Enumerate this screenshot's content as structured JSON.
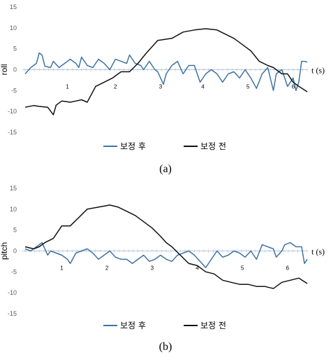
{
  "colors": {
    "after": "#3f73a3",
    "before": "#111111",
    "zero_axis": "#b9c9dc"
  },
  "chart_data": [
    {
      "type": "line",
      "ylabel": "roll",
      "x_label": "t (s)",
      "ylim": [
        -15,
        15
      ],
      "yticks": [
        "15",
        "10",
        "5",
        "0",
        "-5",
        "-10",
        "-15"
      ],
      "segment_labels": [
        "1",
        "2",
        "3",
        "4",
        "5",
        "6"
      ],
      "segment_x": [
        0.15,
        0.32,
        0.48,
        0.63,
        0.79,
        0.95
      ],
      "legend": [
        "보정 후",
        "보정 전"
      ],
      "caption": "(a)",
      "x_range": [
        0,
        1
      ],
      "series": [
        {
          "name": "보정 후",
          "key": "after",
          "points": [
            [
              0,
              -1
            ],
            [
              0.02,
              0.5
            ],
            [
              0.04,
              1.5
            ],
            [
              0.05,
              4
            ],
            [
              0.06,
              3.5
            ],
            [
              0.07,
              0.8
            ],
            [
              0.09,
              0.5
            ],
            [
              0.1,
              2
            ],
            [
              0.12,
              0.5
            ],
            [
              0.14,
              1.5
            ],
            [
              0.16,
              2.5
            ],
            [
              0.18,
              1.5
            ],
            [
              0.19,
              0.5
            ],
            [
              0.2,
              3
            ],
            [
              0.22,
              1
            ],
            [
              0.24,
              0.5
            ],
            [
              0.26,
              2.5
            ],
            [
              0.28,
              1.5
            ],
            [
              0.3,
              0
            ],
            [
              0.32,
              2.5
            ],
            [
              0.34,
              2
            ],
            [
              0.36,
              1.5
            ],
            [
              0.37,
              3.5
            ],
            [
              0.39,
              1.5
            ],
            [
              0.41,
              1
            ],
            [
              0.42,
              0
            ],
            [
              0.44,
              2
            ],
            [
              0.46,
              0
            ],
            [
              0.47,
              -0.5
            ],
            [
              0.49,
              -3.5
            ],
            [
              0.5,
              -1
            ],
            [
              0.52,
              1
            ],
            [
              0.54,
              2
            ],
            [
              0.56,
              -1
            ],
            [
              0.58,
              1
            ],
            [
              0.6,
              1
            ],
            [
              0.62,
              -3
            ],
            [
              0.64,
              -1
            ],
            [
              0.66,
              0
            ],
            [
              0.68,
              -1
            ],
            [
              0.7,
              -3
            ],
            [
              0.72,
              -1
            ],
            [
              0.74,
              -0.5
            ],
            [
              0.76,
              -2
            ],
            [
              0.78,
              0
            ],
            [
              0.8,
              -2
            ],
            [
              0.82,
              -4.5
            ],
            [
              0.84,
              -1
            ],
            [
              0.86,
              0.5
            ],
            [
              0.88,
              -5
            ],
            [
              0.89,
              -1
            ],
            [
              0.91,
              0
            ],
            [
              0.93,
              -4
            ],
            [
              0.95,
              -2
            ],
            [
              0.96,
              -5
            ],
            [
              0.97,
              -3
            ],
            [
              0.98,
              2
            ],
            [
              0.99,
              2
            ],
            [
              1.0,
              1.8
            ]
          ]
        },
        {
          "name": "보정 전",
          "key": "before",
          "points": [
            [
              0,
              -9
            ],
            [
              0.03,
              -8.6
            ],
            [
              0.05,
              -8.8
            ],
            [
              0.08,
              -9
            ],
            [
              0.1,
              -10.8
            ],
            [
              0.11,
              -8.5
            ],
            [
              0.13,
              -7.5
            ],
            [
              0.16,
              -7.8
            ],
            [
              0.18,
              -7.5
            ],
            [
              0.2,
              -7.2
            ],
            [
              0.22,
              -7.8
            ],
            [
              0.25,
              -4
            ],
            [
              0.28,
              -3
            ],
            [
              0.31,
              -2
            ],
            [
              0.34,
              -0.5
            ],
            [
              0.37,
              -0.5
            ],
            [
              0.4,
              1.5
            ],
            [
              0.43,
              4
            ],
            [
              0.47,
              7
            ],
            [
              0.52,
              7.5
            ],
            [
              0.56,
              9
            ],
            [
              0.6,
              9.5
            ],
            [
              0.64,
              9.8
            ],
            [
              0.68,
              9.5
            ],
            [
              0.71,
              8.5
            ],
            [
              0.74,
              7.5
            ],
            [
              0.77,
              6
            ],
            [
              0.8,
              4.5
            ],
            [
              0.83,
              2
            ],
            [
              0.86,
              1
            ],
            [
              0.88,
              0.5
            ],
            [
              0.91,
              -1
            ],
            [
              0.93,
              -1
            ],
            [
              0.95,
              -3
            ],
            [
              0.97,
              -4
            ],
            [
              1.0,
              -5.3
            ]
          ]
        }
      ]
    },
    {
      "type": "line",
      "ylabel": "pitch",
      "x_label": "t (s)",
      "ylim": [
        -15,
        15
      ],
      "yticks": [
        "15",
        "10",
        "5",
        "0",
        "-5",
        "-10",
        "-15"
      ],
      "segment_labels": [
        "1",
        "2",
        "3",
        "4",
        "5",
        "6"
      ],
      "segment_x": [
        0.13,
        0.29,
        0.45,
        0.61,
        0.77,
        0.93
      ],
      "legend": [
        "보정 후",
        "보정 전"
      ],
      "caption": "(b)",
      "x_range": [
        0,
        1
      ],
      "series": [
        {
          "name": "보정 후",
          "key": "after",
          "points": [
            [
              0,
              0.5
            ],
            [
              0.02,
              0
            ],
            [
              0.04,
              1
            ],
            [
              0.06,
              2
            ],
            [
              0.08,
              -1
            ],
            [
              0.09,
              0
            ],
            [
              0.11,
              -0.5
            ],
            [
              0.13,
              -1
            ],
            [
              0.15,
              -2
            ],
            [
              0.16,
              -3
            ],
            [
              0.18,
              -0.5
            ],
            [
              0.2,
              0
            ],
            [
              0.22,
              0.5
            ],
            [
              0.24,
              -0.5
            ],
            [
              0.26,
              -2
            ],
            [
              0.28,
              -1
            ],
            [
              0.3,
              0
            ],
            [
              0.32,
              -1.5
            ],
            [
              0.34,
              -2
            ],
            [
              0.36,
              -2
            ],
            [
              0.38,
              -3
            ],
            [
              0.4,
              -2
            ],
            [
              0.42,
              -1
            ],
            [
              0.44,
              -2.5
            ],
            [
              0.46,
              -2
            ],
            [
              0.48,
              -1
            ],
            [
              0.5,
              -2
            ],
            [
              0.52,
              -2.5
            ],
            [
              0.54,
              -1
            ],
            [
              0.56,
              -0.5
            ],
            [
              0.58,
              0
            ],
            [
              0.6,
              -1
            ],
            [
              0.62,
              -2.5
            ],
            [
              0.64,
              -4
            ],
            [
              0.66,
              -2
            ],
            [
              0.68,
              0
            ],
            [
              0.7,
              -1.5
            ],
            [
              0.72,
              -1
            ],
            [
              0.74,
              0
            ],
            [
              0.76,
              -0.5
            ],
            [
              0.78,
              -1.5
            ],
            [
              0.8,
              0
            ],
            [
              0.82,
              -2
            ],
            [
              0.84,
              1.5
            ],
            [
              0.86,
              1
            ],
            [
              0.88,
              0.5
            ],
            [
              0.89,
              -1.5
            ],
            [
              0.91,
              0
            ],
            [
              0.92,
              1.5
            ],
            [
              0.94,
              2
            ],
            [
              0.96,
              1
            ],
            [
              0.98,
              1
            ],
            [
              0.99,
              -3
            ],
            [
              1.0,
              -2
            ]
          ]
        },
        {
          "name": "보정 전",
          "key": "before",
          "points": [
            [
              0,
              1
            ],
            [
              0.03,
              0.5
            ],
            [
              0.05,
              1
            ],
            [
              0.07,
              2
            ],
            [
              0.1,
              3
            ],
            [
              0.13,
              6
            ],
            [
              0.16,
              6
            ],
            [
              0.19,
              8
            ],
            [
              0.22,
              10
            ],
            [
              0.26,
              10.5
            ],
            [
              0.3,
              11
            ],
            [
              0.33,
              10.5
            ],
            [
              0.36,
              9.5
            ],
            [
              0.39,
              8.5
            ],
            [
              0.42,
              7
            ],
            [
              0.45,
              5.5
            ],
            [
              0.48,
              3.5
            ],
            [
              0.5,
              2
            ],
            [
              0.52,
              1
            ],
            [
              0.55,
              -1
            ],
            [
              0.58,
              -3
            ],
            [
              0.61,
              -3.5
            ],
            [
              0.64,
              -5
            ],
            [
              0.67,
              -5.5
            ],
            [
              0.7,
              -7
            ],
            [
              0.73,
              -7.5
            ],
            [
              0.76,
              -8
            ],
            [
              0.79,
              -8
            ],
            [
              0.82,
              -8.5
            ],
            [
              0.85,
              -8.5
            ],
            [
              0.88,
              -9
            ],
            [
              0.91,
              -7.5
            ],
            [
              0.94,
              -7
            ],
            [
              0.97,
              -6.5
            ],
            [
              1.0,
              -7.8
            ]
          ]
        }
      ]
    }
  ]
}
